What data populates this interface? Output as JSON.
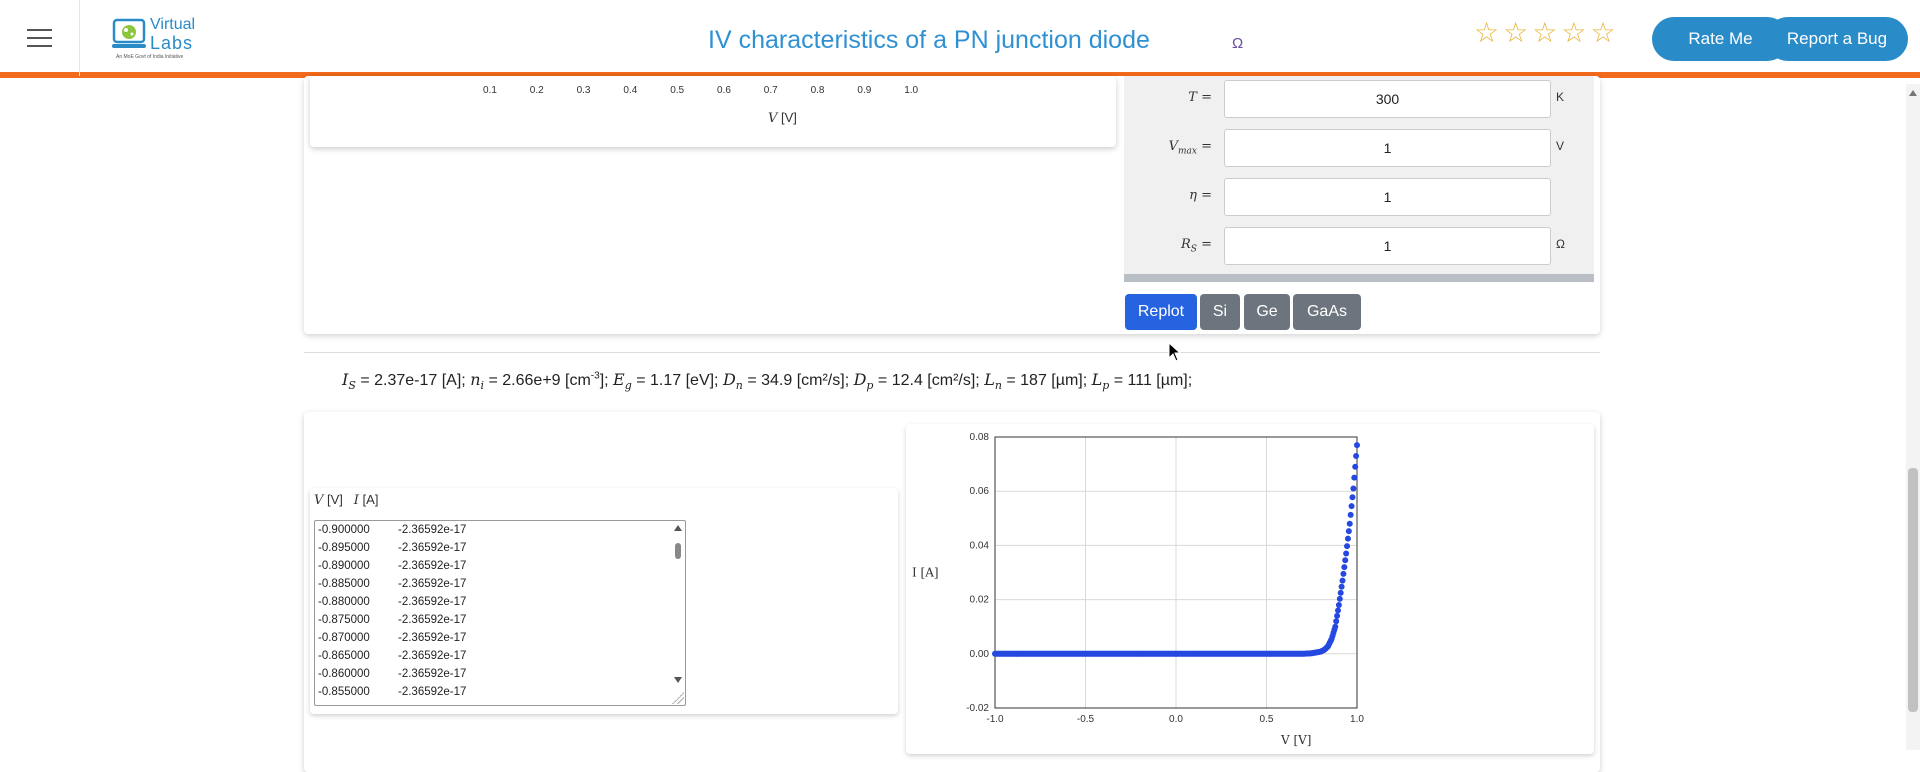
{
  "header": {
    "menu_icon": "hamburger-icon",
    "logo_line1": "Virtual",
    "logo_line2": "Labs",
    "logo_sub": "An MoE Govt of India Initiative",
    "title": "IV characteristics of a PN junction diode",
    "title_icon": "Ω",
    "stars_count": 5,
    "stars_filled": 0,
    "rate_label": "Rate Me",
    "bug_label": "Report a Bug",
    "accent": "#f26a1b",
    "brand": "#2a8bc9"
  },
  "upper_plot": {
    "x_ticks": [
      "0.1",
      "0.2",
      "0.3",
      "0.4",
      "0.5",
      "0.6",
      "0.7",
      "0.8",
      "0.9",
      "1.0"
    ],
    "xlabel_var": "V",
    "xlabel_unit": "[V]"
  },
  "params": [
    {
      "label": "T =",
      "value": "300",
      "unit": "K"
    },
    {
      "label": "Vmax =",
      "value": "1",
      "unit": "V"
    },
    {
      "label": "η =",
      "value": "1",
      "unit": ""
    },
    {
      "label": "RS =",
      "value": "1",
      "unit": "Ω"
    }
  ],
  "buttons": {
    "replot": "Replot",
    "si": "Si",
    "ge": "Ge",
    "gaas": "GaAs"
  },
  "results": {
    "Is_value": "= 2.37e-17 [A];",
    "ni_value": "= 2.66e+9 [cm",
    "ni_exp": "-3",
    "ni_tail": "];",
    "Eg_value": "= 1.17 [eV];",
    "Dn_value": "= 34.9 [cm²/s];",
    "Dp_value": "= 12.4 [cm²/s];",
    "Ln_value": "= 187 [µm];",
    "Lp_value": "= 111 [µm];"
  },
  "table": {
    "v_head": "V",
    "v_unit": "[V]",
    "i_head": "I",
    "i_unit": "[A]",
    "rows": [
      {
        "v": "-0.900000",
        "i": "-2.36592e-17"
      },
      {
        "v": "-0.895000",
        "i": "-2.36592e-17"
      },
      {
        "v": "-0.890000",
        "i": "-2.36592e-17"
      },
      {
        "v": "-0.885000",
        "i": "-2.36592e-17"
      },
      {
        "v": "-0.880000",
        "i": "-2.36592e-17"
      },
      {
        "v": "-0.875000",
        "i": "-2.36592e-17"
      },
      {
        "v": "-0.870000",
        "i": "-2.36592e-17"
      },
      {
        "v": "-0.865000",
        "i": "-2.36592e-17"
      },
      {
        "v": "-0.860000",
        "i": "-2.36592e-17"
      },
      {
        "v": "-0.855000",
        "i": "-2.36592e-17"
      }
    ]
  },
  "chart_data": {
    "type": "scatter",
    "xlabel": "V [V]",
    "ylabel": "I [A]",
    "xlim": [
      -1.0,
      1.0
    ],
    "ylim": [
      -0.02,
      0.08
    ],
    "x_ticks": [
      "-1.0",
      "-0.5",
      "0.0",
      "0.5",
      "1.0"
    ],
    "y_ticks": [
      "0.08",
      "0.06",
      "0.04",
      "0.02",
      "0.00",
      "-0.02"
    ],
    "grid": true,
    "point_color": "#2548e0",
    "series": [
      {
        "x": [
          -1.0,
          -0.8,
          -0.6,
          -0.4,
          -0.2,
          0.0,
          0.2,
          0.4,
          0.6,
          0.7,
          0.75,
          0.8,
          0.82,
          0.84,
          0.86,
          0.88,
          0.9,
          0.92,
          0.94,
          0.96,
          0.98,
          1.0
        ],
        "values": [
          0.0,
          0.0,
          0.0,
          0.0,
          0.0,
          0.0,
          0.0,
          0.0,
          0.0,
          0.0,
          0.0002,
          0.0008,
          0.0015,
          0.0028,
          0.0055,
          0.01,
          0.018,
          0.027,
          0.037,
          0.048,
          0.061,
          0.077
        ]
      }
    ]
  }
}
